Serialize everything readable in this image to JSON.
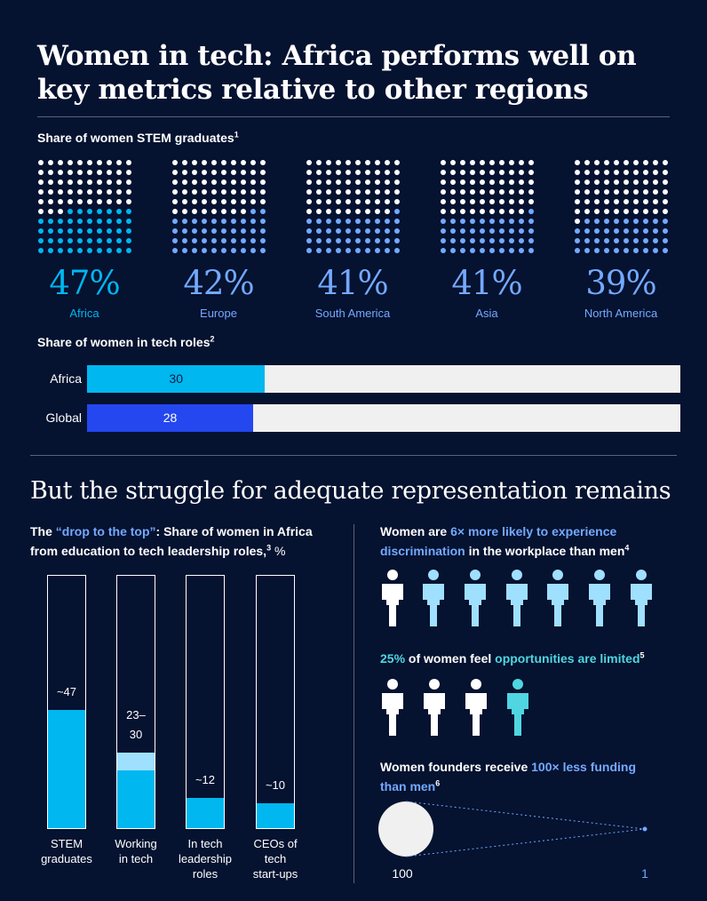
{
  "title": "Women in tech: Africa performs well on key metrics relative to other regions",
  "stem": {
    "label": "Share of women STEM graduates",
    "note": "1",
    "regions": [
      {
        "name": "Africa",
        "pct": "47%"
      },
      {
        "name": "Europe",
        "pct": "42%"
      },
      {
        "name": "South America",
        "pct": "41%"
      },
      {
        "name": "Asia",
        "pct": "41%"
      },
      {
        "name": "North America",
        "pct": "39%"
      }
    ]
  },
  "roles": {
    "label": "Share of women in tech roles",
    "note": "2",
    "rows": [
      {
        "name": "Africa",
        "value": "30"
      },
      {
        "name": "Global",
        "value": "28"
      }
    ]
  },
  "section2": {
    "title": "But the struggle for adequate representation remains"
  },
  "drop": {
    "prefix": "The ",
    "highlight": "“drop to the top”",
    "rest": ": Share of women in Africa from education to tech leadership roles,",
    "note": "3",
    "unit": " %",
    "columns": [
      {
        "label1": "STEM",
        "label2": "graduates",
        "label3": "",
        "val1": "~47",
        "val2": ""
      },
      {
        "label1": "Working",
        "label2": "in tech",
        "label3": "",
        "val1": "23–",
        "val2": "30"
      },
      {
        "label1": "In tech",
        "label2": "leadership",
        "label3": "roles",
        "val1": "~12",
        "val2": ""
      },
      {
        "label1": "CEOs of",
        "label2": "tech",
        "label3": "start-ups",
        "val1": "~10",
        "val2": ""
      }
    ]
  },
  "discrimination": {
    "text1": "Women are ",
    "highlight": "6× more likely to experience discrimination",
    "text2": " in the workplace than men",
    "note": "4"
  },
  "opportunities": {
    "highlight1": "25%",
    "text1": " of women feel ",
    "highlight2": "opportunities are limited",
    "note": "5"
  },
  "funding": {
    "text1": "Women founders receive ",
    "highlight": "100× less funding than men",
    "note": "6",
    "big_value": "100",
    "small_value": "1"
  },
  "colors": {
    "background": "#051230",
    "cyan": "#00b7f0",
    "blue": "#2447f0",
    "light_blue": "#74a9ff",
    "light_cyan": "#9fe0ff",
    "teal": "#4fd6e0"
  },
  "chart_data": [
    {
      "type": "waffle",
      "title": "Share of women STEM graduates",
      "categories": [
        "Africa",
        "Europe",
        "South America",
        "Asia",
        "North America"
      ],
      "values": [
        47,
        42,
        41,
        41,
        39
      ],
      "unit": "%"
    },
    {
      "type": "bar",
      "title": "Share of women in tech roles",
      "categories": [
        "Africa",
        "Global"
      ],
      "values": [
        30,
        28
      ],
      "xlim": [
        0,
        100
      ]
    },
    {
      "type": "bar",
      "title": "“drop to the top”: Share of women in Africa from education to tech leadership roles, %",
      "categories": [
        "STEM graduates",
        "Working in tech",
        "In tech leadership roles",
        "CEOs of tech start-ups"
      ],
      "values": [
        47,
        [
          23,
          30
        ],
        12,
        10
      ],
      "ylim": [
        0,
        100
      ]
    },
    {
      "type": "pictogram",
      "title": "Women are 6× more likely to experience discrimination in the workplace than men",
      "categories": [
        "men",
        "women"
      ],
      "values": [
        1,
        6
      ]
    },
    {
      "type": "pictogram",
      "title": "25% of women feel opportunities are limited",
      "values": [
        25
      ],
      "unit": "%"
    },
    {
      "type": "bubble",
      "title": "Women founders receive 100× less funding than men",
      "categories": [
        "men",
        "women"
      ],
      "values": [
        100,
        1
      ]
    }
  ]
}
